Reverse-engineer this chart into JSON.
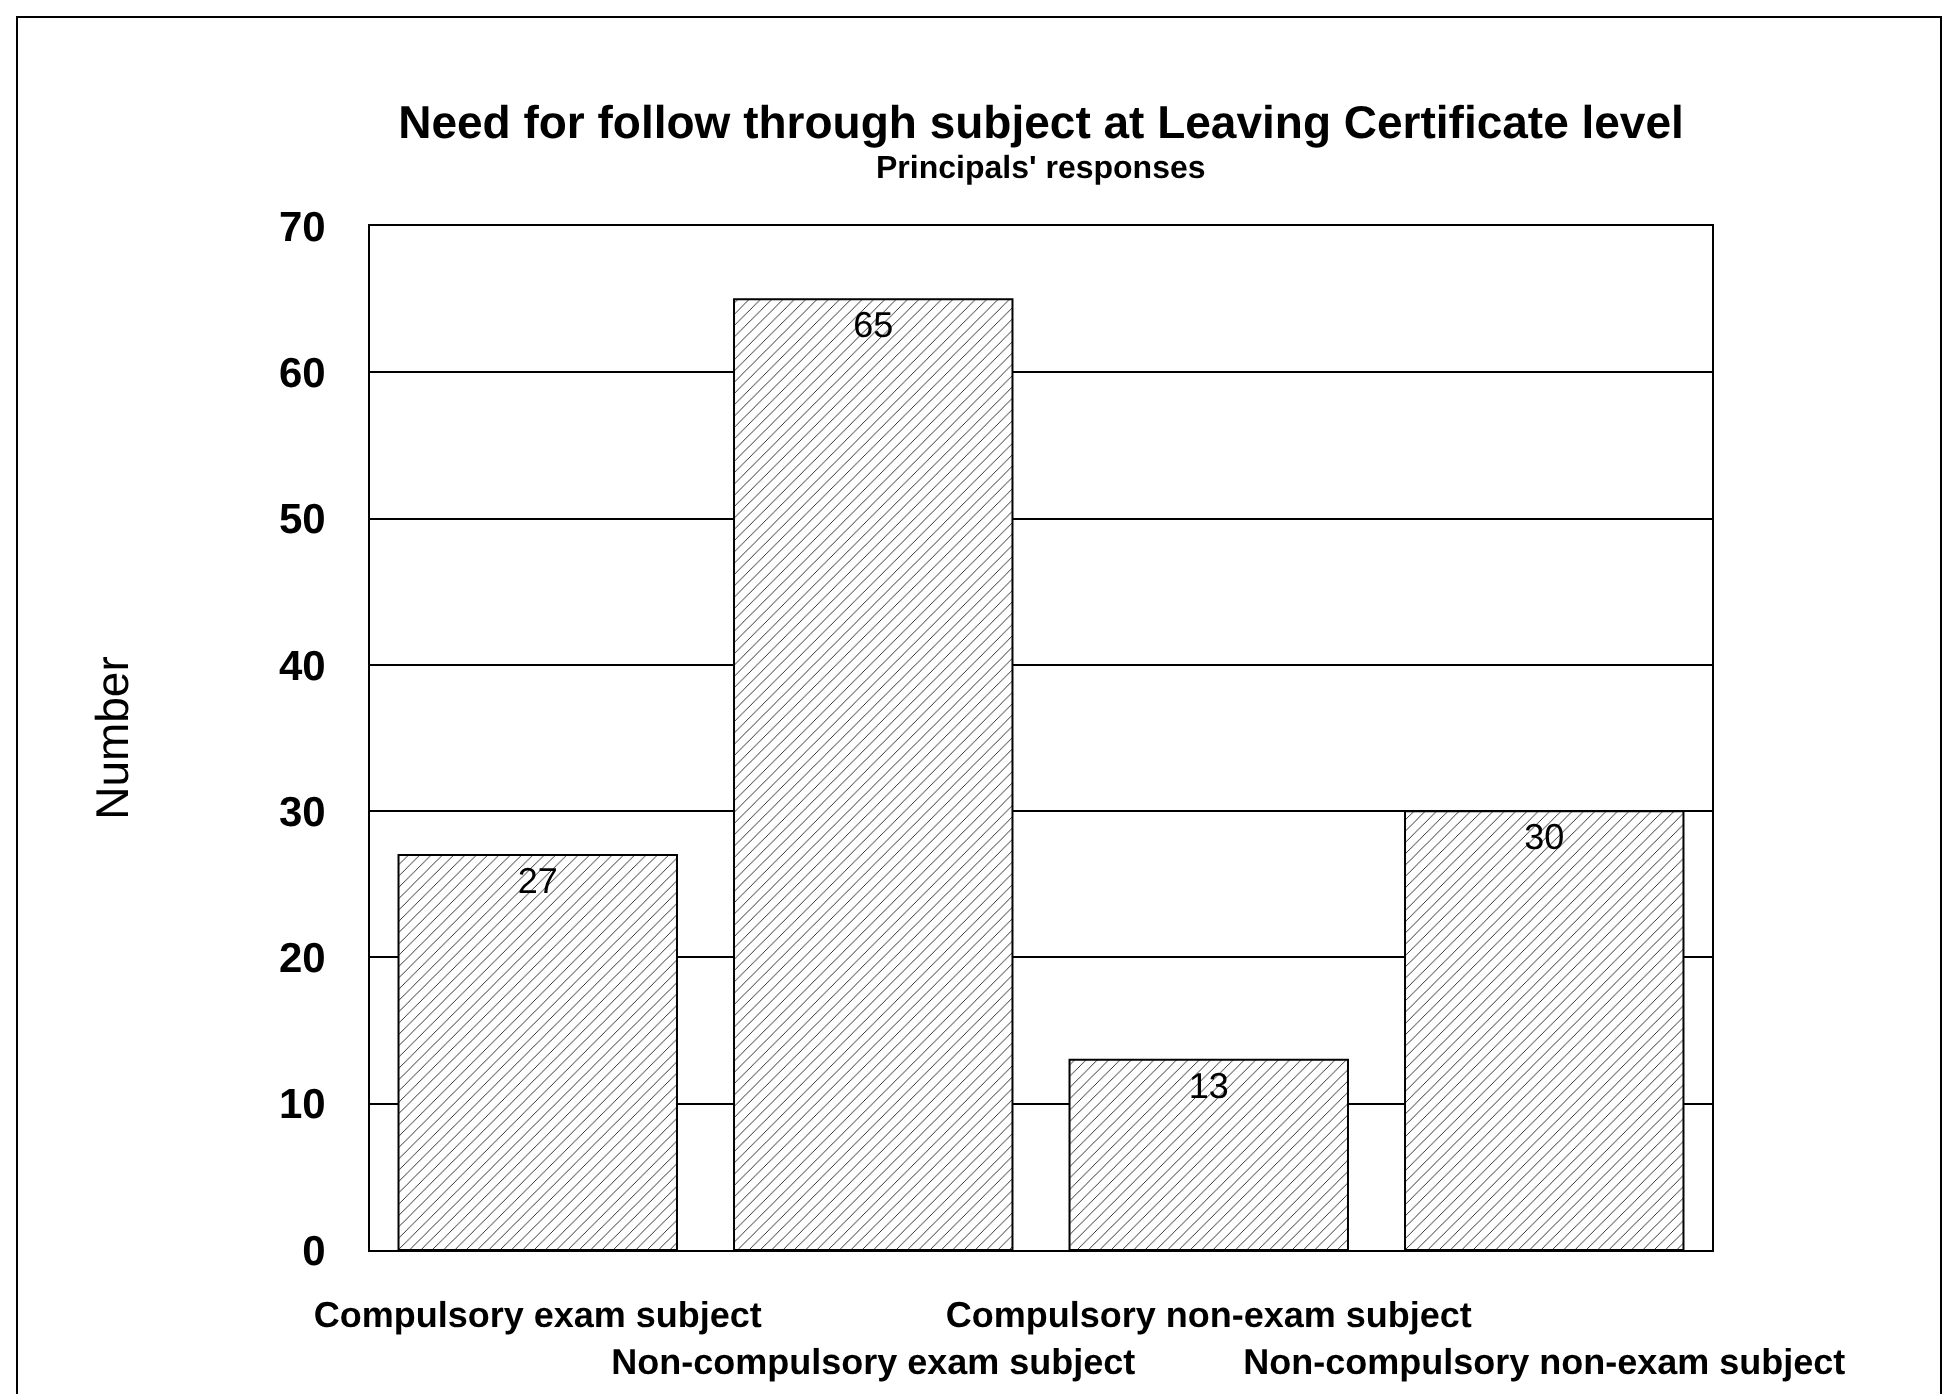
{
  "chart_data": {
    "type": "bar",
    "title": "Need for follow through subject at Leaving Certificate level",
    "subtitle": "Principals' responses",
    "ylabel": "Number",
    "categories": [
      "Compulsory exam subject",
      "Non-compulsory exam subject",
      "Compulsory non-exam subject",
      "Non-compulsory non-exam subject"
    ],
    "values": [
      27,
      65,
      13,
      30
    ],
    "color": "#000000",
    "ylim": [
      0,
      70
    ],
    "yticks": [
      0,
      10,
      20,
      30,
      40,
      50,
      60,
      70
    ],
    "grid": "y",
    "data_labels": true
  }
}
